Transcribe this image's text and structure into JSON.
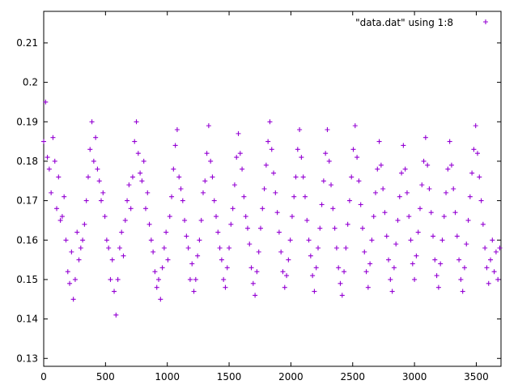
{
  "chart_data": {
    "type": "scatter",
    "title": "",
    "xlabel": "",
    "ylabel": "",
    "xlim": [
      0,
      3700
    ],
    "ylim": [
      0.128,
      0.218
    ],
    "x_ticks": [
      0,
      500,
      1000,
      1500,
      2000,
      2500,
      3000,
      3500
    ],
    "y_ticks": [
      0.13,
      0.14,
      0.15,
      0.16,
      0.17,
      0.18,
      0.19,
      0.2,
      0.21
    ],
    "x_tick_labels": [
      "0",
      "500",
      "1000",
      "1500",
      "2000",
      "2500",
      "3000",
      "3500"
    ],
    "y_tick_labels": [
      "0.13",
      "0.14",
      "0.15",
      "0.16",
      "0.17",
      "0.18",
      "0.19",
      "0.2",
      "0.21"
    ],
    "grid": false,
    "legend": {
      "position": "top-right",
      "entries": [
        "\"data.dat\" using 1:8"
      ]
    },
    "marker": "plus",
    "color": "#9400d3",
    "series": [
      {
        "name": "\"data.dat\" using 1:8",
        "description": "periodic oscillation sampled at integer x, approx. period 370, peaks near 0.18 and troughs near 0.155",
        "points": [
          [
            0,
            0.185
          ],
          [
            15,
            0.195
          ],
          [
            30,
            0.181
          ],
          [
            45,
            0.178
          ],
          [
            60,
            0.172
          ],
          [
            75,
            0.186
          ],
          [
            90,
            0.18
          ],
          [
            105,
            0.168
          ],
          [
            120,
            0.176
          ],
          [
            135,
            0.165
          ],
          [
            150,
            0.166
          ],
          [
            165,
            0.171
          ],
          [
            180,
            0.16
          ],
          [
            195,
            0.152
          ],
          [
            210,
            0.149
          ],
          [
            225,
            0.157
          ],
          [
            240,
            0.145
          ],
          [
            255,
            0.15
          ],
          [
            270,
            0.162
          ],
          [
            285,
            0.155
          ],
          [
            300,
            0.158
          ],
          [
            315,
            0.16
          ],
          [
            330,
            0.164
          ],
          [
            345,
            0.17
          ],
          [
            360,
            0.176
          ],
          [
            375,
            0.183
          ],
          [
            390,
            0.19
          ],
          [
            405,
            0.18
          ],
          [
            420,
            0.186
          ],
          [
            435,
            0.178
          ],
          [
            450,
            0.175
          ],
          [
            465,
            0.17
          ],
          [
            480,
            0.172
          ],
          [
            495,
            0.166
          ],
          [
            510,
            0.16
          ],
          [
            525,
            0.158
          ],
          [
            540,
            0.15
          ],
          [
            555,
            0.155
          ],
          [
            570,
            0.147
          ],
          [
            585,
            0.141
          ],
          [
            600,
            0.15
          ],
          [
            615,
            0.158
          ],
          [
            630,
            0.162
          ],
          [
            645,
            0.156
          ],
          [
            660,
            0.165
          ],
          [
            675,
            0.17
          ],
          [
            690,
            0.174
          ],
          [
            705,
            0.168
          ],
          [
            720,
            0.176
          ],
          [
            735,
            0.185
          ],
          [
            750,
            0.19
          ],
          [
            765,
            0.182
          ],
          [
            780,
            0.177
          ],
          [
            795,
            0.175
          ],
          [
            810,
            0.18
          ],
          [
            825,
            0.168
          ],
          [
            840,
            0.172
          ],
          [
            855,
            0.164
          ],
          [
            870,
            0.16
          ],
          [
            885,
            0.157
          ],
          [
            900,
            0.152
          ],
          [
            915,
            0.148
          ],
          [
            930,
            0.15
          ],
          [
            945,
            0.145
          ],
          [
            960,
            0.153
          ],
          [
            975,
            0.158
          ],
          [
            990,
            0.162
          ],
          [
            1005,
            0.155
          ],
          [
            1020,
            0.166
          ],
          [
            1035,
            0.171
          ],
          [
            1050,
            0.178
          ],
          [
            1065,
            0.184
          ],
          [
            1080,
            0.188
          ],
          [
            1095,
            0.176
          ],
          [
            1110,
            0.173
          ],
          [
            1125,
            0.17
          ],
          [
            1140,
            0.165
          ],
          [
            1155,
            0.161
          ],
          [
            1170,
            0.158
          ],
          [
            1185,
            0.15
          ],
          [
            1200,
            0.154
          ],
          [
            1215,
            0.147
          ],
          [
            1230,
            0.15
          ],
          [
            1245,
            0.156
          ],
          [
            1260,
            0.16
          ],
          [
            1275,
            0.165
          ],
          [
            1290,
            0.172
          ],
          [
            1305,
            0.175
          ],
          [
            1320,
            0.182
          ],
          [
            1335,
            0.189
          ],
          [
            1350,
            0.18
          ],
          [
            1365,
            0.176
          ],
          [
            1380,
            0.17
          ],
          [
            1395,
            0.166
          ],
          [
            1410,
            0.162
          ],
          [
            1425,
            0.158
          ],
          [
            1440,
            0.155
          ],
          [
            1455,
            0.15
          ],
          [
            1470,
            0.148
          ],
          [
            1485,
            0.153
          ],
          [
            1500,
            0.158
          ],
          [
            1515,
            0.164
          ],
          [
            1530,
            0.168
          ],
          [
            1545,
            0.174
          ],
          [
            1560,
            0.181
          ],
          [
            1575,
            0.187
          ],
          [
            1590,
            0.182
          ],
          [
            1605,
            0.178
          ],
          [
            1620,
            0.171
          ],
          [
            1635,
            0.166
          ],
          [
            1650,
            0.163
          ],
          [
            1665,
            0.159
          ],
          [
            1680,
            0.153
          ],
          [
            1695,
            0.149
          ],
          [
            1710,
            0.146
          ],
          [
            1725,
            0.152
          ],
          [
            1740,
            0.157
          ],
          [
            1755,
            0.163
          ],
          [
            1770,
            0.168
          ],
          [
            1785,
            0.173
          ],
          [
            1800,
            0.179
          ],
          [
            1815,
            0.185
          ],
          [
            1830,
            0.19
          ],
          [
            1845,
            0.183
          ],
          [
            1860,
            0.177
          ],
          [
            1875,
            0.172
          ],
          [
            1890,
            0.167
          ],
          [
            1905,
            0.162
          ],
          [
            1920,
            0.157
          ],
          [
            1935,
            0.152
          ],
          [
            1950,
            0.148
          ],
          [
            1965,
            0.151
          ],
          [
            1980,
            0.155
          ],
          [
            1995,
            0.16
          ],
          [
            2010,
            0.166
          ],
          [
            2025,
            0.171
          ],
          [
            2040,
            0.176
          ],
          [
            2055,
            0.183
          ],
          [
            2070,
            0.188
          ],
          [
            2085,
            0.181
          ],
          [
            2100,
            0.176
          ],
          [
            2115,
            0.171
          ],
          [
            2130,
            0.165
          ],
          [
            2145,
            0.16
          ],
          [
            2160,
            0.156
          ],
          [
            2175,
            0.151
          ],
          [
            2190,
            0.147
          ],
          [
            2205,
            0.153
          ],
          [
            2220,
            0.158
          ],
          [
            2235,
            0.163
          ],
          [
            2250,
            0.169
          ],
          [
            2265,
            0.175
          ],
          [
            2280,
            0.182
          ],
          [
            2295,
            0.188
          ],
          [
            2310,
            0.18
          ],
          [
            2325,
            0.174
          ],
          [
            2340,
            0.168
          ],
          [
            2355,
            0.163
          ],
          [
            2370,
            0.158
          ],
          [
            2385,
            0.153
          ],
          [
            2400,
            0.149
          ],
          [
            2415,
            0.146
          ],
          [
            2430,
            0.152
          ],
          [
            2445,
            0.158
          ],
          [
            2460,
            0.164
          ],
          [
            2475,
            0.17
          ],
          [
            2490,
            0.176
          ],
          [
            2505,
            0.183
          ],
          [
            2520,
            0.189
          ],
          [
            2535,
            0.181
          ],
          [
            2550,
            0.175
          ],
          [
            2565,
            0.169
          ],
          [
            2580,
            0.163
          ],
          [
            2595,
            0.157
          ],
          [
            2610,
            0.152
          ],
          [
            2625,
            0.148
          ],
          [
            2640,
            0.154
          ],
          [
            2655,
            0.16
          ],
          [
            2670,
            0.166
          ],
          [
            2685,
            0.172
          ],
          [
            2700,
            0.178
          ],
          [
            2715,
            0.185
          ],
          [
            2730,
            0.179
          ],
          [
            2745,
            0.173
          ],
          [
            2760,
            0.167
          ],
          [
            2775,
            0.161
          ],
          [
            2790,
            0.155
          ],
          [
            2805,
            0.15
          ],
          [
            2820,
            0.147
          ],
          [
            2835,
            0.153
          ],
          [
            2850,
            0.159
          ],
          [
            2865,
            0.165
          ],
          [
            2880,
            0.171
          ],
          [
            2895,
            0.177
          ],
          [
            2910,
            0.184
          ],
          [
            2925,
            0.178
          ],
          [
            2940,
            0.172
          ],
          [
            2955,
            0.166
          ],
          [
            2970,
            0.16
          ],
          [
            2985,
            0.154
          ],
          [
            3000,
            0.15
          ],
          [
            3015,
            0.156
          ],
          [
            3030,
            0.162
          ],
          [
            3045,
            0.168
          ],
          [
            3060,
            0.174
          ],
          [
            3075,
            0.18
          ],
          [
            3090,
            0.186
          ],
          [
            3105,
            0.179
          ],
          [
            3120,
            0.173
          ],
          [
            3135,
            0.167
          ],
          [
            3150,
            0.161
          ],
          [
            3165,
            0.155
          ],
          [
            3180,
            0.151
          ],
          [
            3195,
            0.148
          ],
          [
            3210,
            0.154
          ],
          [
            3225,
            0.16
          ],
          [
            3240,
            0.166
          ],
          [
            3255,
            0.172
          ],
          [
            3270,
            0.178
          ],
          [
            3285,
            0.185
          ],
          [
            3300,
            0.179
          ],
          [
            3315,
            0.173
          ],
          [
            3330,
            0.167
          ],
          [
            3345,
            0.161
          ],
          [
            3360,
            0.155
          ],
          [
            3375,
            0.15
          ],
          [
            3390,
            0.147
          ],
          [
            3405,
            0.153
          ],
          [
            3420,
            0.159
          ],
          [
            3435,
            0.165
          ],
          [
            3450,
            0.171
          ],
          [
            3465,
            0.177
          ],
          [
            3480,
            0.183
          ],
          [
            3495,
            0.189
          ],
          [
            3510,
            0.182
          ],
          [
            3525,
            0.176
          ],
          [
            3540,
            0.17
          ],
          [
            3555,
            0.164
          ],
          [
            3570,
            0.158
          ],
          [
            3585,
            0.153
          ],
          [
            3600,
            0.149
          ],
          [
            3615,
            0.155
          ],
          [
            3630,
            0.16
          ],
          [
            3645,
            0.152
          ],
          [
            3660,
            0.157
          ],
          [
            3675,
            0.15
          ],
          [
            3690,
            0.158
          ]
        ]
      }
    ]
  }
}
